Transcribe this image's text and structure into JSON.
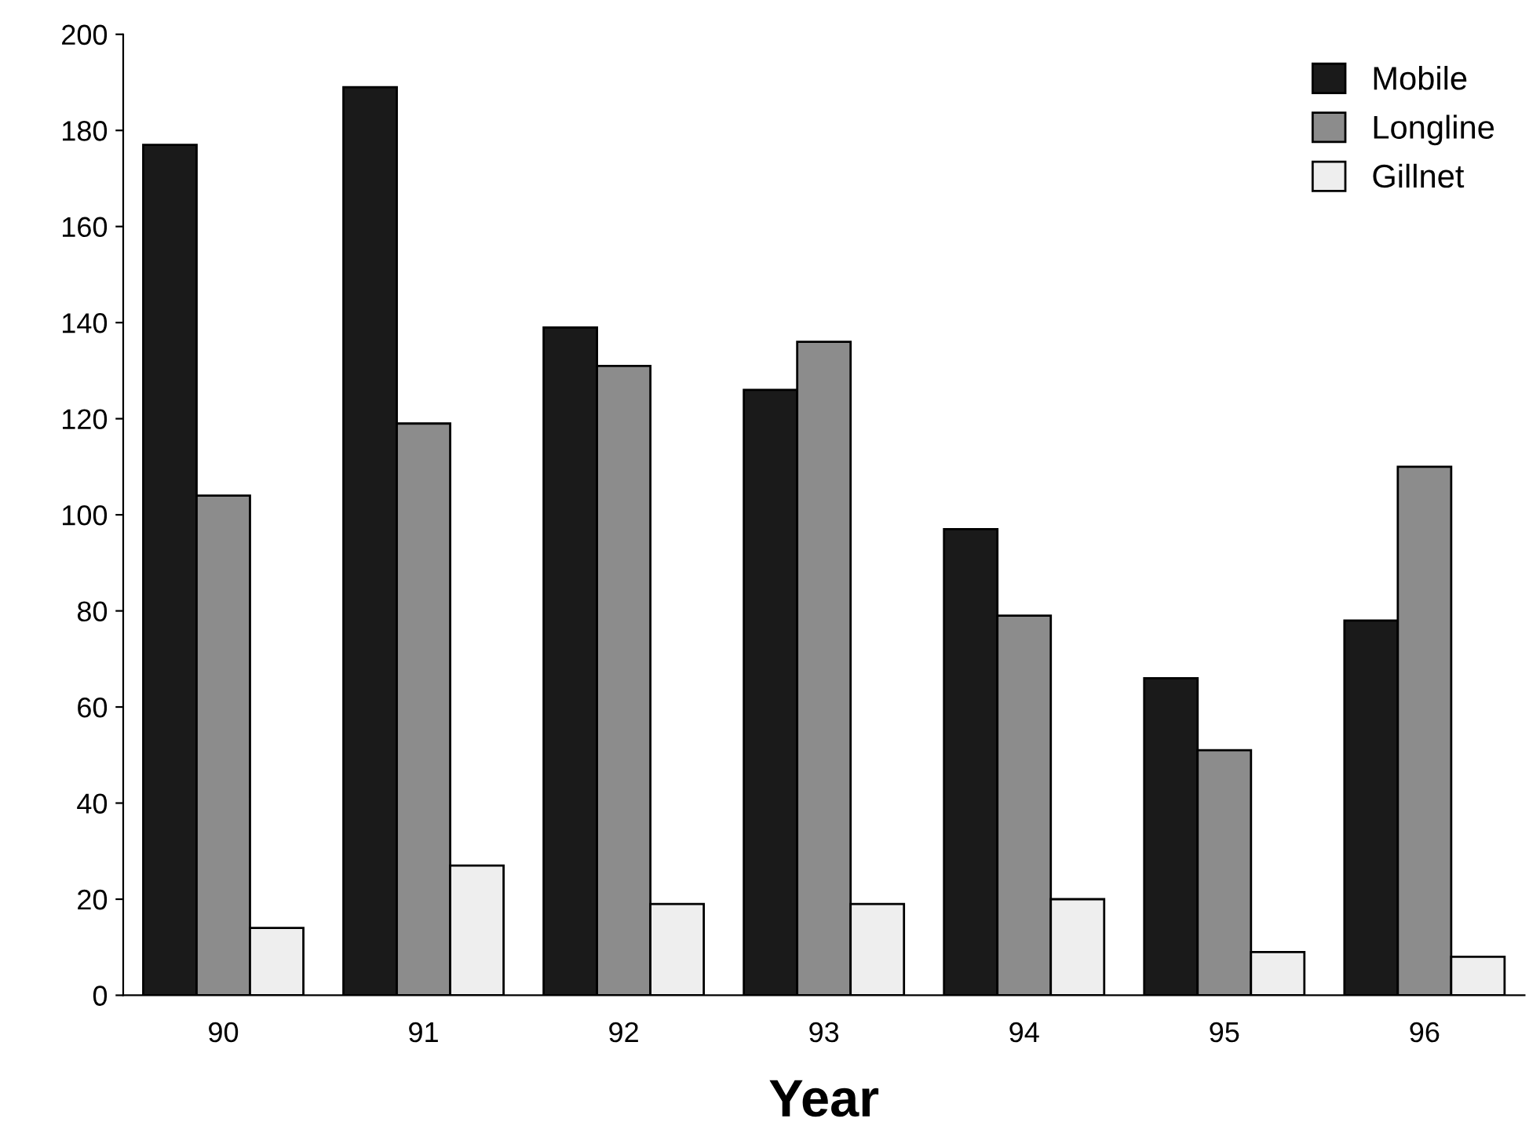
{
  "chart_data": {
    "type": "bar",
    "xlabel": "Year",
    "categories": [
      "90",
      "91",
      "92",
      "93",
      "94",
      "95",
      "96"
    ],
    "series": [
      {
        "name": "Mobile",
        "color": "#1a1a1a",
        "values": [
          177,
          189,
          139,
          126,
          97,
          66,
          78
        ]
      },
      {
        "name": "Longline",
        "color": "#8c8c8c",
        "values": [
          104,
          119,
          131,
          136,
          79,
          51,
          110
        ]
      },
      {
        "name": "Gillnet",
        "color": "#eeeeee",
        "values": [
          14,
          27,
          19,
          19,
          20,
          9,
          8
        ]
      }
    ],
    "ylim": [
      0,
      200
    ],
    "yticks": [
      0,
      20,
      40,
      60,
      80,
      100,
      120,
      140,
      160,
      180,
      200
    ],
    "grid": false,
    "legend": "top right"
  }
}
